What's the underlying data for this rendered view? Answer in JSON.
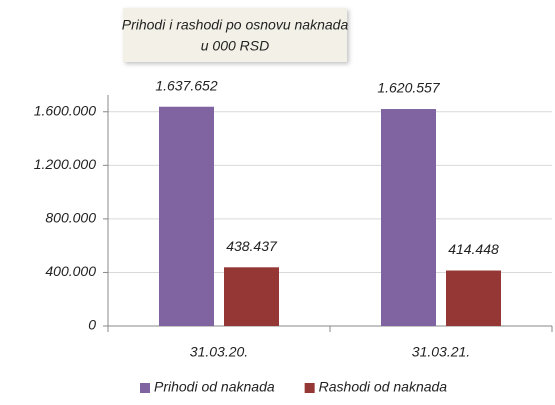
{
  "chart_data": {
    "type": "bar",
    "title": "Prihodi i rashodi po osnovu naknada",
    "subtitle": "u 000 RSD",
    "categories": [
      "31.03.20.",
      "31.03.21."
    ],
    "series": [
      {
        "name": "Prihodi od naknada",
        "color": "#8064a2",
        "values": [
          1637652,
          1620557
        ],
        "value_labels": [
          "1.637.652",
          "1.620.557"
        ]
      },
      {
        "name": "Rashodi od naknada",
        "color": "#953735",
        "values": [
          438437,
          414448
        ],
        "value_labels": [
          "438.437",
          "414.448"
        ]
      }
    ],
    "ylim": [
      0,
      1800000
    ],
    "yticks": [
      0,
      {
        "value": 400000,
        "label": "400.000"
      },
      {
        "value": 800000,
        "label": "800.000"
      },
      {
        "value": 1200000,
        "label": "1.200.000"
      },
      {
        "value": 1600000,
        "label": "1.600.000"
      }
    ],
    "grid": true,
    "legend": "bottom"
  }
}
